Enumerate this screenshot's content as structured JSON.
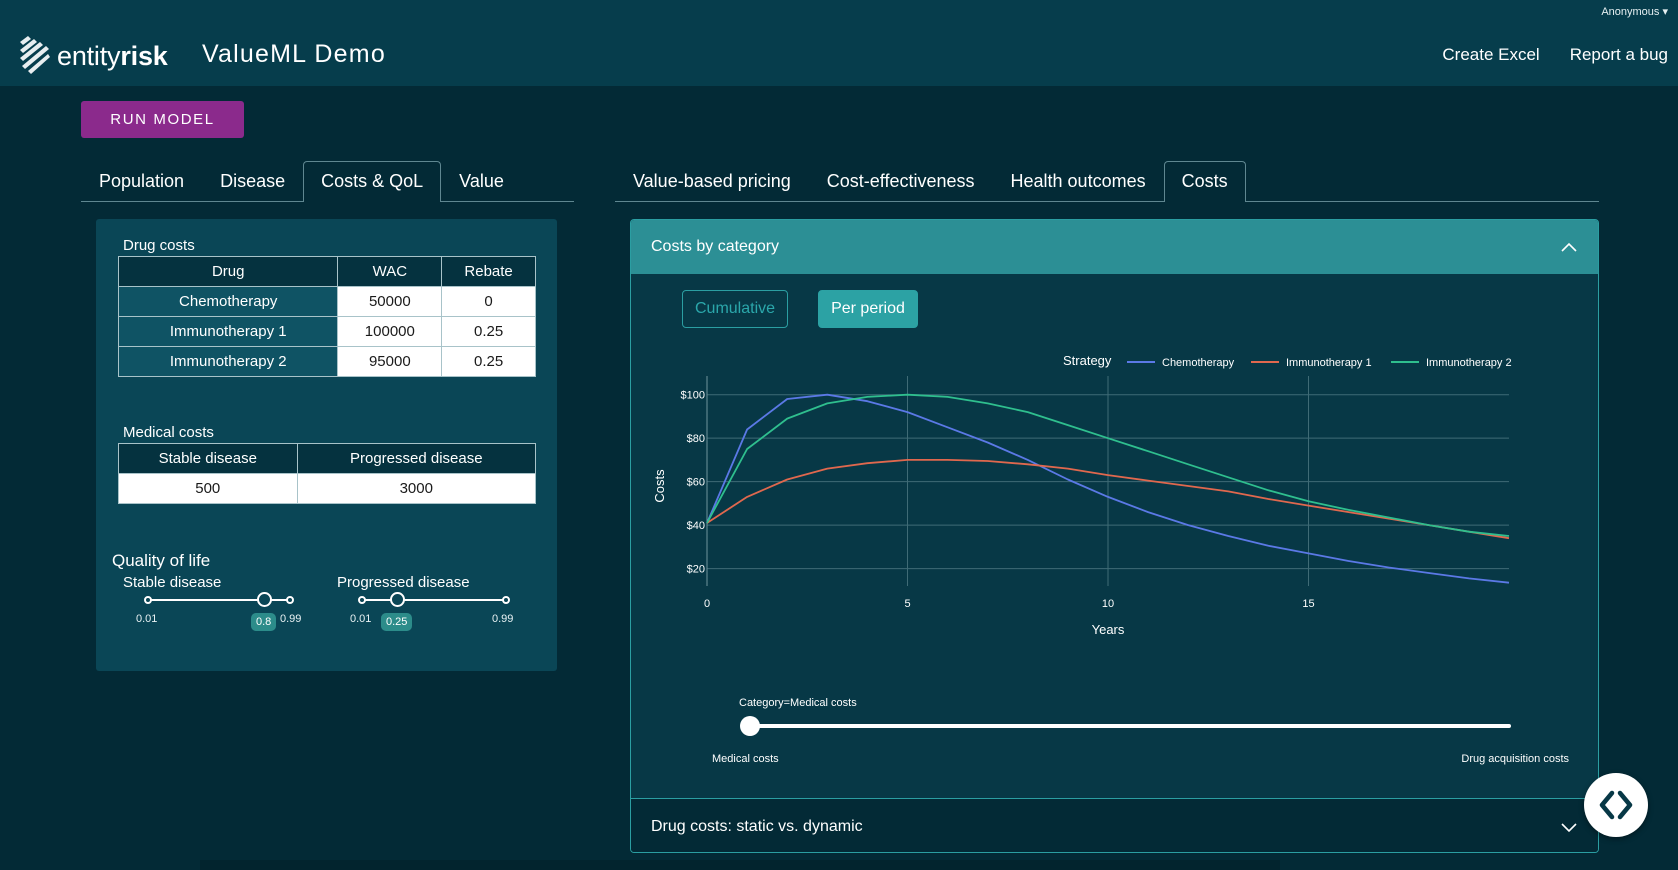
{
  "navbar": {
    "user_menu": "Anonymous ▾",
    "logo_text_light": "entity",
    "logo_text_bold": "risk",
    "app_title": "ValueML Demo",
    "links": [
      "Create Excel",
      "Report a bug"
    ]
  },
  "run_button": "RUN MODEL",
  "left_tabs": [
    "Population",
    "Disease",
    "Costs & QoL",
    "Value"
  ],
  "left_active_tab": "Costs & QoL",
  "right_tabs": [
    "Value-based pricing",
    "Cost-effectiveness",
    "Health outcomes",
    "Costs"
  ],
  "right_active_tab": "Costs",
  "drug_costs": {
    "title": "Drug costs",
    "columns": [
      "Drug",
      "WAC",
      "Rebate"
    ],
    "rows": [
      [
        "Chemotherapy",
        "50000",
        "0"
      ],
      [
        "Immunotherapy 1",
        "100000",
        "0.25"
      ],
      [
        "Immunotherapy 2",
        "95000",
        "0.25"
      ]
    ]
  },
  "medical_costs": {
    "title": "Medical costs",
    "columns": [
      "Stable disease",
      "Progressed disease"
    ],
    "values": [
      "500",
      "3000"
    ]
  },
  "quality_of_life": {
    "title": "Quality of life",
    "sliders": [
      {
        "label": "Stable disease",
        "min": "0.01",
        "max": "0.99",
        "value": "0.8"
      },
      {
        "label": "Progressed disease",
        "min": "0.01",
        "max": "0.99",
        "value": "0.25"
      }
    ]
  },
  "costs_card": {
    "header": "Costs by category",
    "toggle_cumulative": "Cumulative",
    "toggle_per_period": "Per period",
    "footer": "Drug costs: static vs. dynamic"
  },
  "chart_data": {
    "type": "line",
    "legend_title": "Strategy",
    "legend_position": "top-right",
    "xlabel": "Years",
    "ylabel": "Costs",
    "xlim": [
      0,
      20
    ],
    "ylim": [
      12,
      104
    ],
    "x_ticks": [
      0,
      5,
      10,
      15
    ],
    "x_tick_labels": [
      "0",
      "5",
      "10",
      "15"
    ],
    "y_ticks": [
      20,
      40,
      60,
      80,
      100
    ],
    "y_tick_labels": [
      "$20",
      "$40",
      "$60",
      "$80",
      "$100"
    ],
    "grid": true,
    "x": [
      0,
      1,
      2,
      3,
      4,
      5,
      6,
      7,
      8,
      9,
      10,
      11,
      12,
      13,
      14,
      15,
      16,
      17,
      18,
      19,
      20
    ],
    "series": [
      {
        "name": "Chemotherapy",
        "color": "#5b79e6",
        "values": [
          41,
          84,
          98,
          100,
          97,
          92,
          85,
          78,
          70,
          61,
          53,
          46,
          40,
          35,
          30.5,
          27,
          23.5,
          20.5,
          18,
          15.5,
          13.5
        ]
      },
      {
        "name": "Immunotherapy 1",
        "color": "#e0684e",
        "values": [
          41,
          53,
          61,
          66,
          68.5,
          70,
          70,
          69.5,
          68,
          66,
          63,
          60.5,
          58,
          55.5,
          52,
          49,
          46,
          43,
          40,
          37,
          34
        ]
      },
      {
        "name": "Immunotherapy 2",
        "color": "#2fbf8e",
        "values": [
          41,
          75,
          89,
          96,
          99,
          100,
          99,
          96,
          92,
          86,
          80,
          74,
          68,
          62,
          56,
          51,
          47,
          43.5,
          40,
          37,
          35
        ]
      }
    ],
    "slider": {
      "label": "Category=Medical costs",
      "value": "Medical costs",
      "steps": [
        "Medical costs",
        "Drug acquisition costs"
      ]
    }
  },
  "colors": {
    "navbar": "#063d4c",
    "page": "#032a36",
    "run_button": "#8b2a8c",
    "card_header": "#2c8f95"
  }
}
